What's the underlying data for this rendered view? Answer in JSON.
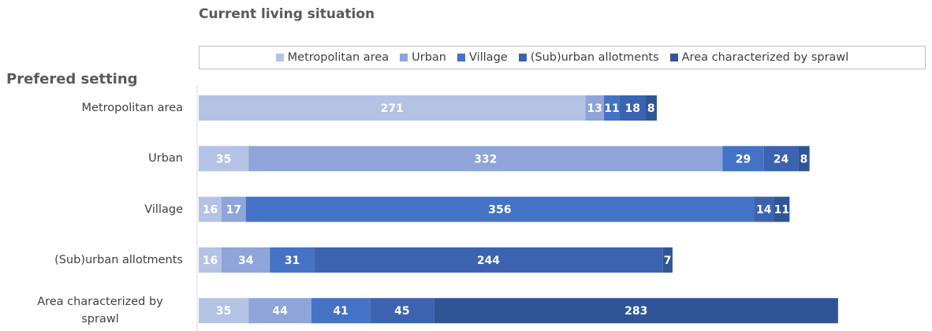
{
  "chart_data": {
    "type": "stacked_bar_horizontal",
    "legend_title": "Current living situation",
    "y_axis_title": "Prefered setting",
    "categories": [
      "Metropolitan area",
      "Urban",
      "Village",
      "(Sub)urban allotments",
      "Area characterized by sprawl"
    ],
    "series": [
      {
        "name": "Metropolitan area",
        "color": "#b4c2e4",
        "values": [
          271,
          35,
          16,
          16,
          35
        ]
      },
      {
        "name": "Urban",
        "color": "#8fa4d8",
        "values": [
          13,
          332,
          17,
          34,
          44
        ]
      },
      {
        "name": "Village",
        "color": "#4472c4",
        "values": [
          11,
          29,
          356,
          31,
          41
        ]
      },
      {
        "name": "(Sub)urban allotments",
        "color": "#3b63b0",
        "values": [
          18,
          24,
          14,
          244,
          45
        ]
      },
      {
        "name": "Area characterized by sprawl",
        "color": "#2f5597",
        "values": [
          8,
          8,
          11,
          7,
          283
        ]
      }
    ]
  }
}
